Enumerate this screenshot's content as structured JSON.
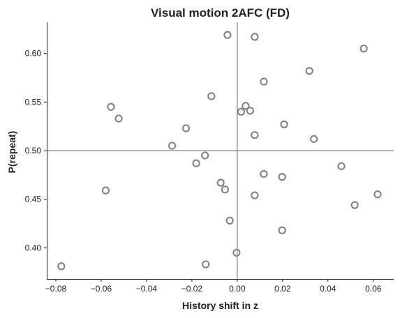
{
  "chart_data": {
    "type": "scatter",
    "title": "Visual motion 2AFC (FD)",
    "xlabel": "History shift in z",
    "ylabel": "P(repeat)",
    "xlim": [
      -0.084,
      0.069
    ],
    "ylim": [
      0.368,
      0.632
    ],
    "xticks": [
      -0.08,
      -0.06,
      -0.04,
      -0.02,
      0.0,
      0.02,
      0.04,
      0.06
    ],
    "xtick_labels": [
      "−0.08",
      "−0.06",
      "−0.04",
      "−0.02",
      "0.00",
      "0.02",
      "0.04",
      "0.06"
    ],
    "yticks": [
      0.4,
      0.45,
      0.5,
      0.55,
      0.6
    ],
    "ytick_labels": [
      "0.40",
      "0.45",
      "0.50",
      "0.55",
      "0.60"
    ],
    "reference_lines": {
      "x": 0,
      "y": 0.5
    },
    "marker": {
      "style": "open-circle",
      "color": "#808080"
    },
    "grid": false,
    "points": [
      {
        "x": -0.0776,
        "y": 0.381
      },
      {
        "x": -0.058,
        "y": 0.459
      },
      {
        "x": -0.0557,
        "y": 0.545
      },
      {
        "x": -0.0523,
        "y": 0.533
      },
      {
        "x": -0.0287,
        "y": 0.505
      },
      {
        "x": -0.0226,
        "y": 0.523
      },
      {
        "x": -0.0181,
        "y": 0.487
      },
      {
        "x": -0.0142,
        "y": 0.495
      },
      {
        "x": -0.0114,
        "y": 0.556
      },
      {
        "x": -0.0139,
        "y": 0.383
      },
      {
        "x": -0.0073,
        "y": 0.467
      },
      {
        "x": -0.0054,
        "y": 0.46
      },
      {
        "x": -0.0043,
        "y": 0.619
      },
      {
        "x": -0.0033,
        "y": 0.428
      },
      {
        "x": -0.0003,
        "y": 0.395
      },
      {
        "x": 0.0017,
        "y": 0.54
      },
      {
        "x": 0.0037,
        "y": 0.546
      },
      {
        "x": 0.0057,
        "y": 0.541
      },
      {
        "x": 0.0077,
        "y": 0.617
      },
      {
        "x": 0.0077,
        "y": 0.516
      },
      {
        "x": 0.0077,
        "y": 0.454
      },
      {
        "x": 0.0117,
        "y": 0.571
      },
      {
        "x": 0.0117,
        "y": 0.476
      },
      {
        "x": 0.0198,
        "y": 0.473
      },
      {
        "x": 0.0198,
        "y": 0.418
      },
      {
        "x": 0.0207,
        "y": 0.527
      },
      {
        "x": 0.0318,
        "y": 0.582
      },
      {
        "x": 0.0338,
        "y": 0.512
      },
      {
        "x": 0.0459,
        "y": 0.484
      },
      {
        "x": 0.0518,
        "y": 0.444
      },
      {
        "x": 0.0558,
        "y": 0.605
      },
      {
        "x": 0.0619,
        "y": 0.455
      }
    ]
  }
}
